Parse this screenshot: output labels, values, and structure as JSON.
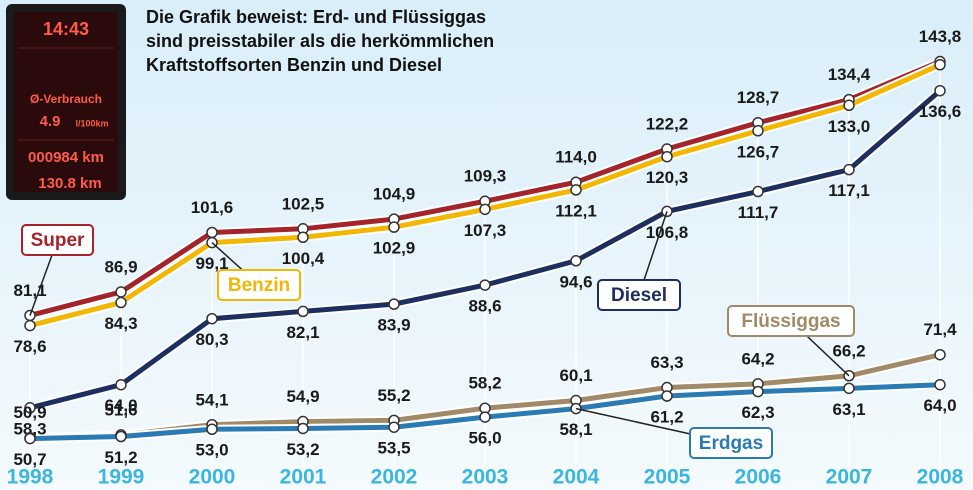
{
  "chart_data": {
    "type": "line",
    "title_lines": [
      "Die Grafik beweist: Erd- und Flüssiggas",
      "sind preisstabiler als die herkömmlichen",
      "Kraftstoffsorten Benzin und Diesel"
    ],
    "categories": [
      "1998",
      "1999",
      "2000",
      "2001",
      "2002",
      "2003",
      "2004",
      "2005",
      "2006",
      "2007",
      "2008"
    ],
    "series": [
      {
        "name": "Super",
        "color": "#a3242b",
        "values": [
          81.1,
          86.9,
          101.6,
          102.5,
          104.9,
          109.3,
          114.0,
          122.2,
          128.7,
          134.4,
          143.8
        ],
        "value_labels": [
          "81,1",
          "86,9",
          "101,6",
          "102,5",
          "104,9",
          "109,3",
          "114,0",
          "122,2",
          "128,7",
          "134,4",
          "143,8"
        ]
      },
      {
        "name": "Benzin",
        "color": "#f2b705",
        "values": [
          78.6,
          84.3,
          99.1,
          100.4,
          102.9,
          107.3,
          112.1,
          120.3,
          126.7,
          133.0,
          143.0
        ],
        "value_labels": [
          "78,6",
          "84,3",
          "99,1",
          "100,4",
          "102,9",
          "107,3",
          "112,1",
          "120,3",
          "126,7",
          "133,0",
          null
        ]
      },
      {
        "name": "Diesel",
        "color": "#1c2f5e",
        "values": [
          58.3,
          64.0,
          80.3,
          82.1,
          83.9,
          88.6,
          94.6,
          106.8,
          111.7,
          117.1,
          136.6
        ],
        "value_labels": [
          "58,3",
          "64,0",
          "80,3",
          "82,1",
          "83,9",
          "88,6",
          "94,6",
          "106,8",
          "111,7",
          "117,1",
          "136,6"
        ]
      },
      {
        "name": "Flüssiggas",
        "color": "#a08a68",
        "values": [
          50.9,
          51.6,
          54.1,
          54.9,
          55.2,
          58.2,
          60.1,
          63.3,
          64.2,
          66.2,
          71.4
        ],
        "value_labels": [
          "50,9",
          "51,6",
          "54,1",
          "54,9",
          "55,2",
          "58,2",
          "60,1",
          "63,3",
          "64,2",
          "66,2",
          "71,4"
        ]
      },
      {
        "name": "Erdgas",
        "color": "#2a7ab4",
        "values": [
          50.7,
          51.2,
          53.0,
          53.2,
          53.5,
          56.0,
          58.1,
          61.2,
          62.3,
          63.1,
          64.0
        ],
        "value_labels": [
          "50,7",
          "51,2",
          "53,0",
          "53,2",
          "53,5",
          "56,0",
          "58,1",
          "61,2",
          "62,3",
          "63,1",
          "64,0"
        ]
      }
    ],
    "ylim": [
      38,
      159
    ]
  },
  "photo": {
    "texts": [
      "14:43",
      "Ø-Verbrauch",
      "4.9",
      "l/100km",
      "000984 km",
      "130.8 km"
    ]
  }
}
